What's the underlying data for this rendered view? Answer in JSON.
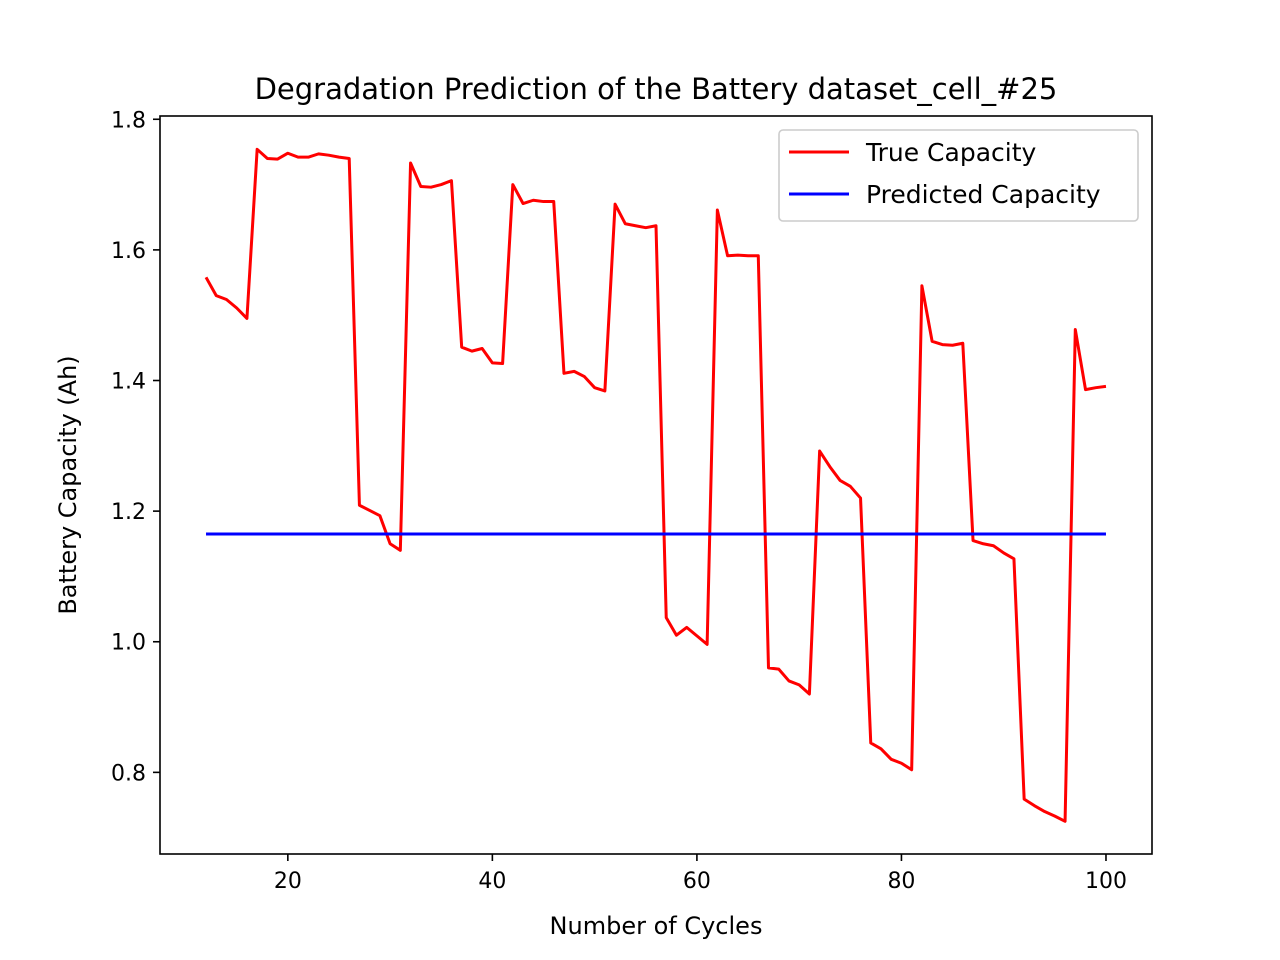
{
  "chart_data": {
    "type": "line",
    "title": "Degradation Prediction of the Battery dataset_cell_#25",
    "xlabel": "Number of Cycles",
    "ylabel": "Battery Capacity (Ah)",
    "xlim": [
      7.5,
      104.5
    ],
    "ylim": [
      0.675,
      1.805
    ],
    "xticks": [
      20,
      40,
      60,
      80,
      100
    ],
    "xtick_labels": [
      "20",
      "40",
      "60",
      "80",
      "100"
    ],
    "yticks": [
      0.8,
      1.0,
      1.2,
      1.4,
      1.6,
      1.8
    ],
    "ytick_labels": [
      "0.8",
      "1.0",
      "1.2",
      "1.4",
      "1.6",
      "1.8"
    ],
    "grid": false,
    "legend_position": "top-right",
    "series": [
      {
        "name": "True Capacity",
        "color": "#ff0000",
        "x": [
          12,
          13,
          14,
          15,
          16,
          17,
          18,
          19,
          20,
          21,
          22,
          23,
          24,
          25,
          26,
          27,
          28,
          29,
          30,
          31,
          32,
          33,
          34,
          35,
          36,
          37,
          38,
          39,
          40,
          41,
          42,
          43,
          44,
          45,
          46,
          47,
          48,
          49,
          50,
          51,
          52,
          53,
          54,
          55,
          56,
          57,
          58,
          59,
          60,
          61,
          62,
          63,
          64,
          65,
          66,
          67,
          68,
          69,
          70,
          71,
          72,
          73,
          74,
          75,
          76,
          77,
          78,
          79,
          80,
          81,
          82,
          83,
          84,
          85,
          86,
          87,
          88,
          89,
          90,
          91,
          92,
          93,
          94,
          95,
          96,
          97,
          98,
          99,
          100
        ],
        "y": [
          1.558,
          1.53,
          1.524,
          1.511,
          1.495,
          1.754,
          1.74,
          1.739,
          1.748,
          1.742,
          1.742,
          1.747,
          1.745,
          1.742,
          1.74,
          1.209,
          1.201,
          1.193,
          1.15,
          1.14,
          1.733,
          1.697,
          1.696,
          1.7,
          1.706,
          1.451,
          1.445,
          1.449,
          1.427,
          1.426,
          1.7,
          1.671,
          1.676,
          1.674,
          1.674,
          1.411,
          1.414,
          1.406,
          1.389,
          1.384,
          1.67,
          1.64,
          1.637,
          1.634,
          1.637,
          1.037,
          1.01,
          1.022,
          1.009,
          0.996,
          1.661,
          1.591,
          1.592,
          1.591,
          1.591,
          0.96,
          0.958,
          0.94,
          0.934,
          0.92,
          1.292,
          1.268,
          1.247,
          1.238,
          1.22,
          0.845,
          0.836,
          0.82,
          0.814,
          0.804,
          1.545,
          1.46,
          1.455,
          1.454,
          1.457,
          1.155,
          1.15,
          1.147,
          1.136,
          1.127,
          0.759,
          0.749,
          0.74,
          0.733,
          0.725,
          1.478,
          1.386,
          1.389,
          1.391
        ]
      },
      {
        "name": "Predicted Capacity",
        "color": "#0000ff",
        "x": [
          12,
          100
        ],
        "y": [
          1.165,
          1.165
        ]
      }
    ]
  }
}
